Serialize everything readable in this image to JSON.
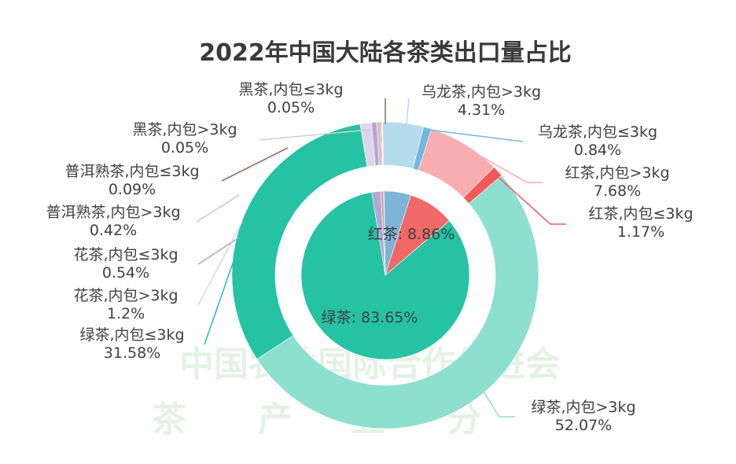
{
  "chart_data": {
    "type": "pie",
    "title": "2022年中国大陆各茶类出口量占比",
    "outer_series": [
      {
        "label": "黑茶,内包≤3kg",
        "value": 0.05,
        "value_label": "0.05%",
        "color": "#8d6e63"
      },
      {
        "label": "乌龙茶,内包>3kg",
        "value": 4.31,
        "value_label": "4.31%",
        "color": "#b5dcec"
      },
      {
        "label": "乌龙茶,内包≤3kg",
        "value": 0.84,
        "value_label": "0.84%",
        "color": "#74b7de"
      },
      {
        "label": "红茶,内包>3kg",
        "value": 7.68,
        "value_label": "7.68%",
        "color": "#f8aeb0"
      },
      {
        "label": "红茶,内包≤3kg",
        "value": 1.17,
        "value_label": "1.17%",
        "color": "#f25a5a"
      },
      {
        "label": "绿茶,内包>3kg",
        "value": 52.07,
        "value_label": "52.07%",
        "color": "#8ddfcf"
      },
      {
        "label": "绿茶,内包≤3kg",
        "value": 31.58,
        "value_label": "31.58%",
        "color": "#25c2a4"
      },
      {
        "label": "花茶,内包>3kg",
        "value": 1.2,
        "value_label": "1.2%",
        "color": "#dcd5ec"
      },
      {
        "label": "花茶,内包≤3kg",
        "value": 0.54,
        "value_label": "0.54%",
        "color": "#b3a6d6"
      },
      {
        "label": "普洱熟茶,内包>3kg",
        "value": 0.42,
        "value_label": "0.42%",
        "color": "#e3bcbc"
      },
      {
        "label": "普洱熟茶,内包≤3kg",
        "value": 0.09,
        "value_label": "0.09%",
        "color": "#a0524a"
      },
      {
        "label": "黑茶,内包>3kg",
        "value": 0.05,
        "value_label": "0.05%",
        "color": "#cfcfcf"
      }
    ],
    "inner_series": [
      {
        "label": "黑茶",
        "value": 0.1,
        "color": "#9e9e9e"
      },
      {
        "label": "乌龙茶",
        "value": 5.15,
        "color": "#7cb5d6"
      },
      {
        "label": "红茶",
        "value": 8.86,
        "value_label": "红茶: 8.86%",
        "color": "#f06868"
      },
      {
        "label": "绿茶",
        "value": 83.65,
        "value_label": "绿茶: 83.65%",
        "color": "#25c2a4"
      },
      {
        "label": "花茶",
        "value": 1.74,
        "color": "#b3a6d6"
      },
      {
        "label": "普洱熟茶",
        "value": 0.51,
        "color": "#c9a0a0"
      }
    ]
  },
  "watermark": {
    "line1": "中国农业国际合作促进会",
    "line2": [
      "茶",
      "产",
      "业",
      "分"
    ]
  }
}
